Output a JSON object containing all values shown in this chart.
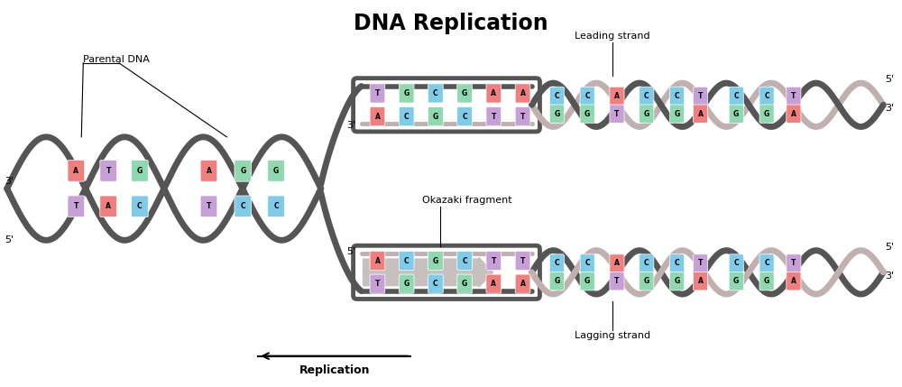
{
  "title": "DNA Replication",
  "title_fontsize": 17,
  "title_fontweight": "bold",
  "bg_color": "#ffffff",
  "strand_dark": "#555555",
  "strand_light": "#c0b0b0",
  "base_colors": {
    "A": "#f08080",
    "T": "#c8a0d8",
    "G": "#90d8b0",
    "C": "#80cce8"
  },
  "parental_label": "Parental DNA",
  "leading_label": "Leading strand",
  "lagging_label": "Lagging strand",
  "okazaki_label": "Okazaki fragment",
  "replication_label": "Replication",
  "parental_bases_loop1_top": [
    "A",
    "T",
    "G"
  ],
  "parental_bases_loop1_bot": [
    "T",
    "A",
    "C"
  ],
  "parental_bases_loop2_top": [
    "A",
    "G",
    "G"
  ],
  "parental_bases_loop2_bot": [
    "T",
    "C",
    "C"
  ],
  "leading_fork_top": [
    "T",
    "G",
    "C",
    "G",
    "A",
    "A"
  ],
  "leading_fork_bot": [
    "A",
    "C",
    "G",
    "C",
    "T",
    "T"
  ],
  "leading_helix1_top": [
    "C",
    "C",
    "A"
  ],
  "leading_helix1_bot": [
    "G",
    "G",
    "T"
  ],
  "leading_helix2_top": [
    "C",
    "C",
    "T"
  ],
  "leading_helix2_bot": [
    "G",
    "G",
    "A"
  ],
  "lagging_fork_top": [
    "A",
    "C",
    "G",
    "C",
    "T",
    "T"
  ],
  "lagging_fork_bot": [
    "T",
    "G",
    "C",
    "G",
    "A",
    "A"
  ],
  "lagging_helix1_top": [
    "C",
    "C",
    "A"
  ],
  "lagging_helix1_bot": [
    "G",
    "G",
    "T"
  ],
  "lagging_helix2_top": [
    "C",
    "C",
    "T"
  ],
  "lagging_helix2_bot": [
    "G",
    "G",
    "A"
  ]
}
